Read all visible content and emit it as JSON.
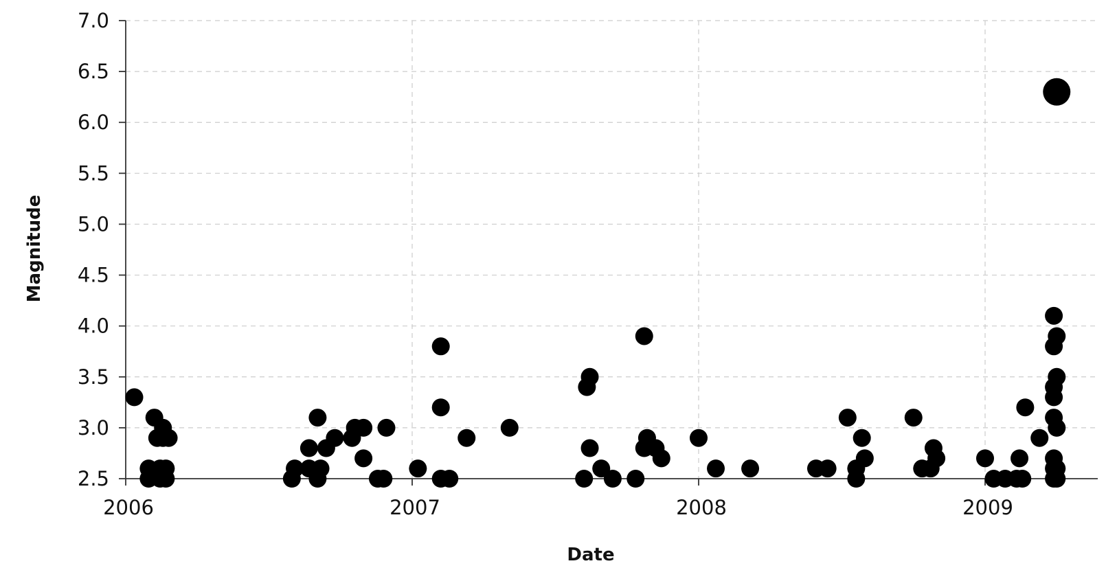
{
  "chart_data": {
    "type": "scatter",
    "xlabel": "Date",
    "ylabel": "Magnitude",
    "xlim": [
      2006.0,
      2009.33
    ],
    "ylim": [
      2.5,
      7.0
    ],
    "x_ticks": [
      2006,
      2007,
      2008,
      2009
    ],
    "x_tick_labels": [
      "2006",
      "2007",
      "2008",
      "2009"
    ],
    "y_ticks": [
      2.5,
      3.0,
      3.5,
      4.0,
      4.5,
      5.0,
      5.5,
      6.0,
      6.5,
      7.0
    ],
    "y_tick_labels": [
      "2.5",
      "3.0",
      "3.5",
      "4.0",
      "4.5",
      "5.0",
      "5.5",
      "6.0",
      "6.5",
      "7.0"
    ],
    "grid": true,
    "marker_color": "#000000",
    "points": [
      {
        "x": 2006.03,
        "y": 3.3
      },
      {
        "x": 2006.08,
        "y": 2.6
      },
      {
        "x": 2006.08,
        "y": 2.5
      },
      {
        "x": 2006.1,
        "y": 3.1
      },
      {
        "x": 2006.11,
        "y": 2.9
      },
      {
        "x": 2006.12,
        "y": 2.6
      },
      {
        "x": 2006.12,
        "y": 2.5
      },
      {
        "x": 2006.13,
        "y": 3.0
      },
      {
        "x": 2006.13,
        "y": 2.9
      },
      {
        "x": 2006.14,
        "y": 2.6
      },
      {
        "x": 2006.14,
        "y": 2.5
      },
      {
        "x": 2006.15,
        "y": 2.9
      },
      {
        "x": 2006.58,
        "y": 2.5
      },
      {
        "x": 2006.59,
        "y": 2.6
      },
      {
        "x": 2006.64,
        "y": 2.8
      },
      {
        "x": 2006.64,
        "y": 2.6
      },
      {
        "x": 2006.67,
        "y": 2.5
      },
      {
        "x": 2006.67,
        "y": 3.1
      },
      {
        "x": 2006.68,
        "y": 2.6
      },
      {
        "x": 2006.7,
        "y": 2.8
      },
      {
        "x": 2006.73,
        "y": 2.9
      },
      {
        "x": 2006.79,
        "y": 2.9
      },
      {
        "x": 2006.8,
        "y": 3.0
      },
      {
        "x": 2006.83,
        "y": 3.0
      },
      {
        "x": 2006.83,
        "y": 2.7
      },
      {
        "x": 2006.88,
        "y": 2.5
      },
      {
        "x": 2006.9,
        "y": 2.5
      },
      {
        "x": 2006.91,
        "y": 3.0
      },
      {
        "x": 2007.02,
        "y": 2.6
      },
      {
        "x": 2007.1,
        "y": 3.8
      },
      {
        "x": 2007.1,
        "y": 3.2
      },
      {
        "x": 2007.1,
        "y": 2.5
      },
      {
        "x": 2007.13,
        "y": 2.5
      },
      {
        "x": 2007.19,
        "y": 2.9
      },
      {
        "x": 2007.34,
        "y": 3.0
      },
      {
        "x": 2007.6,
        "y": 2.5
      },
      {
        "x": 2007.61,
        "y": 3.4
      },
      {
        "x": 2007.62,
        "y": 3.5
      },
      {
        "x": 2007.62,
        "y": 2.8
      },
      {
        "x": 2007.66,
        "y": 2.6
      },
      {
        "x": 2007.7,
        "y": 2.5
      },
      {
        "x": 2007.78,
        "y": 2.5
      },
      {
        "x": 2007.81,
        "y": 3.9
      },
      {
        "x": 2007.81,
        "y": 2.8
      },
      {
        "x": 2007.82,
        "y": 2.9
      },
      {
        "x": 2007.85,
        "y": 2.8
      },
      {
        "x": 2007.87,
        "y": 2.7
      },
      {
        "x": 2008.0,
        "y": 2.9
      },
      {
        "x": 2008.06,
        "y": 2.6
      },
      {
        "x": 2008.18,
        "y": 2.6
      },
      {
        "x": 2008.41,
        "y": 2.6
      },
      {
        "x": 2008.45,
        "y": 2.6
      },
      {
        "x": 2008.52,
        "y": 3.1
      },
      {
        "x": 2008.55,
        "y": 2.6
      },
      {
        "x": 2008.55,
        "y": 2.5
      },
      {
        "x": 2008.57,
        "y": 2.9
      },
      {
        "x": 2008.58,
        "y": 2.7
      },
      {
        "x": 2008.75,
        "y": 3.1
      },
      {
        "x": 2008.78,
        "y": 2.6
      },
      {
        "x": 2008.81,
        "y": 2.6
      },
      {
        "x": 2008.82,
        "y": 2.8
      },
      {
        "x": 2008.83,
        "y": 2.7
      },
      {
        "x": 2009.0,
        "y": 2.7
      },
      {
        "x": 2009.03,
        "y": 2.5
      },
      {
        "x": 2009.07,
        "y": 2.5
      },
      {
        "x": 2009.11,
        "y": 2.5
      },
      {
        "x": 2009.12,
        "y": 2.7
      },
      {
        "x": 2009.13,
        "y": 2.5
      },
      {
        "x": 2009.14,
        "y": 3.2
      },
      {
        "x": 2009.19,
        "y": 2.9
      },
      {
        "x": 2009.24,
        "y": 4.1
      },
      {
        "x": 2009.24,
        "y": 3.8
      },
      {
        "x": 2009.24,
        "y": 3.4
      },
      {
        "x": 2009.24,
        "y": 3.3
      },
      {
        "x": 2009.24,
        "y": 3.1
      },
      {
        "x": 2009.24,
        "y": 2.7
      },
      {
        "x": 2009.24,
        "y": 2.6
      },
      {
        "x": 2009.24,
        "y": 2.5
      },
      {
        "x": 2009.25,
        "y": 3.9
      },
      {
        "x": 2009.25,
        "y": 3.5
      },
      {
        "x": 2009.25,
        "y": 3.0
      },
      {
        "x": 2009.25,
        "y": 2.6
      },
      {
        "x": 2009.25,
        "y": 2.5
      },
      {
        "x": 2009.25,
        "y": 6.3
      }
    ]
  }
}
